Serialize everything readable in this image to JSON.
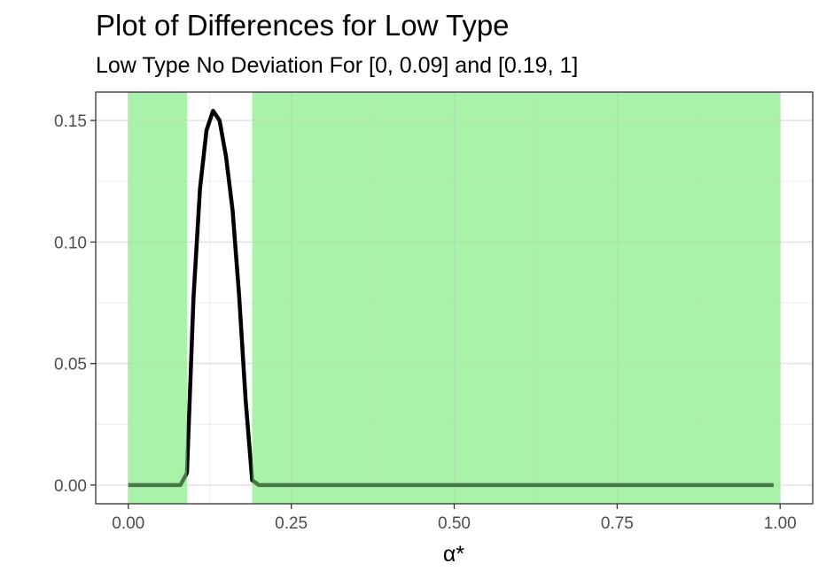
{
  "chart_data": {
    "type": "line",
    "title": "Plot of Differences for Low Type",
    "subtitle": "Low Type No Deviation For [0, 0.09] and [0.19, 1]",
    "xlabel": "α*",
    "ylabel": "",
    "xlim": [
      -0.05,
      1.05
    ],
    "ylim": [
      -0.0077,
      0.1617
    ],
    "x_ticks": [
      0,
      0.25,
      0.5,
      0.75,
      1
    ],
    "x_tick_labels": [
      "0.00",
      "0.25",
      "0.50",
      "0.75",
      "1.00"
    ],
    "x_minor_ticks": [
      0.125,
      0.375,
      0.625,
      0.875
    ],
    "y_ticks": [
      0,
      0.05,
      0.1,
      0.15
    ],
    "y_tick_labels": [
      "0.00",
      "0.05",
      "0.10",
      "0.15"
    ],
    "y_minor_ticks": [
      0.025,
      0.075,
      0.125
    ],
    "grid": true,
    "shaded_regions": [
      {
        "xmin": 0,
        "xmax": 0.09,
        "color": "#90EE90"
      },
      {
        "xmin": 0.19,
        "xmax": 1,
        "color": "#90EE90"
      }
    ],
    "series": [
      {
        "color": "#000000",
        "x": [
          0,
          0.01,
          0.02,
          0.03,
          0.04,
          0.05,
          0.06,
          0.07,
          0.08,
          0.09,
          0.1,
          0.11,
          0.12,
          0.13,
          0.14,
          0.15,
          0.16,
          0.17,
          0.18,
          0.19,
          0.2,
          0.25,
          0.3,
          0.35,
          0.4,
          0.45,
          0.5,
          0.55,
          0.6,
          0.65,
          0.7,
          0.75,
          0.8,
          0.85,
          0.9,
          0.95,
          0.99
        ],
        "y": [
          0,
          0,
          0,
          0,
          0,
          0,
          0,
          0,
          0,
          0.005,
          0.077,
          0.122,
          0.146,
          0.154,
          0.15,
          0.135,
          0.113,
          0.078,
          0.035,
          0.002,
          0,
          0,
          0,
          0,
          0,
          0,
          0,
          0,
          0,
          0,
          0,
          0,
          0,
          0,
          0,
          0,
          0
        ]
      }
    ]
  }
}
